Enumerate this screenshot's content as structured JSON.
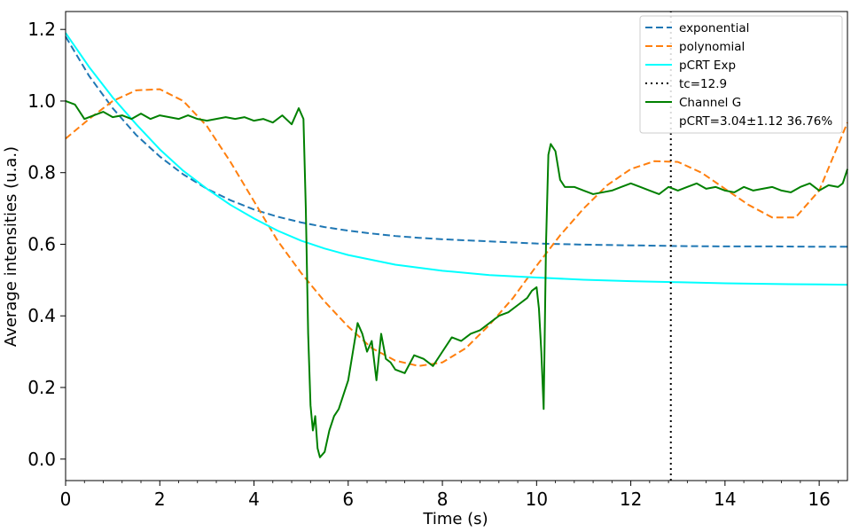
{
  "chart_data": {
    "type": "line",
    "xlabel": "Time (s)",
    "ylabel": "Average intensities (u.a.)",
    "xlim": [
      0,
      16.6
    ],
    "ylim": [
      -0.06,
      1.25
    ],
    "xticks": [
      0,
      2,
      4,
      6,
      8,
      10,
      12,
      14,
      16
    ],
    "yticks": [
      0.0,
      0.2,
      0.4,
      0.6,
      0.8,
      1.0,
      1.2
    ],
    "xtick_labels": [
      "0",
      "2",
      "4",
      "6",
      "8",
      "10",
      "12",
      "14",
      "16"
    ],
    "ytick_labels": [
      "0.0",
      "0.2",
      "0.4",
      "0.6",
      "0.8",
      "1.0",
      "1.2"
    ],
    "legend_position": "top-right",
    "grid": false,
    "series": [
      {
        "name": "exponential",
        "style": "dashed",
        "color": "#1f77b4",
        "x": [
          0,
          0.5,
          1,
          1.5,
          2,
          2.5,
          3,
          3.5,
          4,
          4.5,
          5,
          5.5,
          6,
          6.5,
          7,
          7.5,
          8,
          9,
          10,
          11,
          12,
          13,
          14,
          15,
          16,
          16.6
        ],
        "y": [
          1.18,
          1.07,
          0.98,
          0.905,
          0.845,
          0.795,
          0.755,
          0.723,
          0.697,
          0.677,
          0.661,
          0.648,
          0.638,
          0.63,
          0.623,
          0.618,
          0.614,
          0.608,
          0.602,
          0.599,
          0.597,
          0.595,
          0.594,
          0.594,
          0.593,
          0.593
        ]
      },
      {
        "name": "polynomial",
        "style": "dashed",
        "color": "#ff7f0e",
        "x": [
          0,
          0.5,
          1,
          1.5,
          2,
          2.5,
          3,
          3.5,
          4,
          4.5,
          5,
          5.5,
          6,
          6.5,
          7,
          7.5,
          8,
          8.5,
          9,
          9.5,
          10,
          10.5,
          11,
          11.5,
          12,
          12.5,
          13,
          13.5,
          14,
          14.5,
          15,
          15.5,
          16,
          16.6
        ],
        "y": [
          0.895,
          0.95,
          1.0,
          1.03,
          1.033,
          1.0,
          0.93,
          0.83,
          0.72,
          0.61,
          0.52,
          0.44,
          0.37,
          0.31,
          0.275,
          0.26,
          0.27,
          0.31,
          0.375,
          0.45,
          0.54,
          0.625,
          0.7,
          0.765,
          0.81,
          0.832,
          0.83,
          0.8,
          0.755,
          0.71,
          0.675,
          0.675,
          0.75,
          0.94
        ]
      },
      {
        "name": "pCRT Exp",
        "style": "solid",
        "color": "#00ffff",
        "x": [
          0,
          0.5,
          1,
          1.5,
          2,
          2.5,
          3,
          3.5,
          4,
          4.5,
          5,
          5.5,
          6,
          7,
          8,
          9,
          10,
          11,
          12,
          13,
          14,
          15,
          16,
          16.6
        ],
        "y": [
          1.19,
          1.095,
          1.01,
          0.935,
          0.865,
          0.805,
          0.755,
          0.71,
          0.672,
          0.638,
          0.61,
          0.588,
          0.57,
          0.543,
          0.526,
          0.514,
          0.507,
          0.501,
          0.497,
          0.494,
          0.491,
          0.489,
          0.488,
          0.487
        ]
      },
      {
        "name": "tc=12.9",
        "style": "dotted",
        "color": "#000000",
        "x": [
          12.85,
          12.85
        ],
        "y": [
          -0.06,
          1.25
        ]
      },
      {
        "name": "Channel G",
        "style": "solid",
        "color": "#008000",
        "x": [
          0,
          0.2,
          0.4,
          0.6,
          0.8,
          1.0,
          1.2,
          1.4,
          1.6,
          1.8,
          2.0,
          2.2,
          2.4,
          2.6,
          2.8,
          3.0,
          3.2,
          3.4,
          3.6,
          3.8,
          4.0,
          4.2,
          4.4,
          4.6,
          4.8,
          4.95,
          5.05,
          5.1,
          5.15,
          5.2,
          5.25,
          5.3,
          5.35,
          5.4,
          5.5,
          5.6,
          5.7,
          5.8,
          5.9,
          6.0,
          6.1,
          6.2,
          6.3,
          6.4,
          6.5,
          6.6,
          6.7,
          6.8,
          6.9,
          7.0,
          7.2,
          7.4,
          7.6,
          7.8,
          8.0,
          8.2,
          8.4,
          8.6,
          8.8,
          9.0,
          9.2,
          9.4,
          9.6,
          9.8,
          9.9,
          10.0,
          10.05,
          10.1,
          10.15,
          10.2,
          10.25,
          10.3,
          10.4,
          10.5,
          10.6,
          10.8,
          11.0,
          11.2,
          11.4,
          11.6,
          11.8,
          12.0,
          12.2,
          12.4,
          12.6,
          12.8,
          13.0,
          13.2,
          13.4,
          13.6,
          13.8,
          14.0,
          14.2,
          14.4,
          14.6,
          14.8,
          15.0,
          15.2,
          15.4,
          15.6,
          15.8,
          16.0,
          16.2,
          16.4,
          16.5,
          16.6
        ],
        "y": [
          1.0,
          0.99,
          0.95,
          0.96,
          0.97,
          0.955,
          0.96,
          0.95,
          0.965,
          0.95,
          0.96,
          0.955,
          0.95,
          0.96,
          0.95,
          0.945,
          0.95,
          0.955,
          0.95,
          0.955,
          0.945,
          0.95,
          0.94,
          0.96,
          0.935,
          0.98,
          0.95,
          0.7,
          0.35,
          0.15,
          0.08,
          0.12,
          0.03,
          0.005,
          0.02,
          0.08,
          0.12,
          0.14,
          0.18,
          0.22,
          0.3,
          0.38,
          0.35,
          0.3,
          0.33,
          0.22,
          0.35,
          0.28,
          0.27,
          0.25,
          0.24,
          0.29,
          0.28,
          0.26,
          0.3,
          0.34,
          0.33,
          0.35,
          0.36,
          0.38,
          0.4,
          0.41,
          0.43,
          0.45,
          0.47,
          0.48,
          0.42,
          0.3,
          0.14,
          0.6,
          0.85,
          0.88,
          0.86,
          0.78,
          0.76,
          0.76,
          0.75,
          0.74,
          0.745,
          0.75,
          0.76,
          0.77,
          0.76,
          0.75,
          0.74,
          0.76,
          0.75,
          0.76,
          0.77,
          0.755,
          0.76,
          0.75,
          0.745,
          0.76,
          0.75,
          0.755,
          0.76,
          0.75,
          0.745,
          0.76,
          0.77,
          0.75,
          0.765,
          0.76,
          0.77,
          0.81
        ]
      }
    ],
    "legend_extra_text": "pCRT=3.04±1.12 36.76%"
  }
}
